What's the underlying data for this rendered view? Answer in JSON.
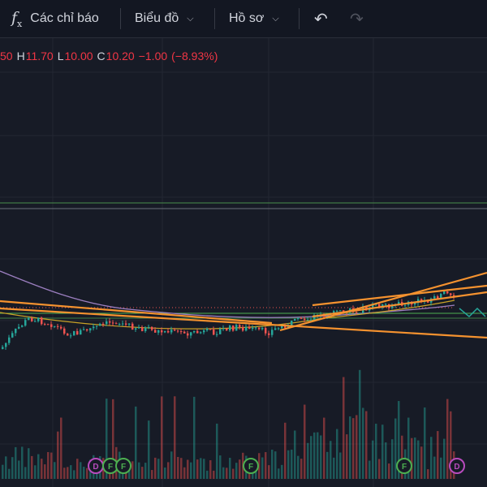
{
  "toolbar": {
    "indicators_label": "Các chỉ báo",
    "chart_label": "Biểu đồ",
    "profile_label": "Hồ sơ",
    "icons": [
      "fx-icon",
      "chevron-down-icon",
      "undo-icon",
      "redo-icon"
    ]
  },
  "legend": {
    "open_partial": "50",
    "high_key": "H",
    "high_value": "11.70",
    "low_key": "L",
    "low_value": "10.00",
    "close_key": "C",
    "close_value": "10.20",
    "change": "−1.00",
    "change_pct": "(−8.93%)",
    "color": "#f23645"
  },
  "colors": {
    "background": "#171b26",
    "up": "#26a69a",
    "down": "#ef5350",
    "trendline": "#f5922f",
    "ma_purple": "#9c7fc0",
    "ma_yellow": "#c9a227",
    "horizontal_line": "#4caf50"
  },
  "markers": [
    {
      "label": "D",
      "type": "dividend",
      "color": "#b84bbd"
    },
    {
      "label": "F",
      "type": "financial",
      "color": "#4caf50"
    },
    {
      "label": "F",
      "type": "financial",
      "color": "#4caf50"
    },
    {
      "label": "F",
      "type": "financial",
      "color": "#4caf50"
    },
    {
      "label": "F",
      "type": "financial",
      "color": "#4caf50"
    },
    {
      "label": "D",
      "type": "dividend",
      "color": "#b84bbd"
    }
  ]
}
